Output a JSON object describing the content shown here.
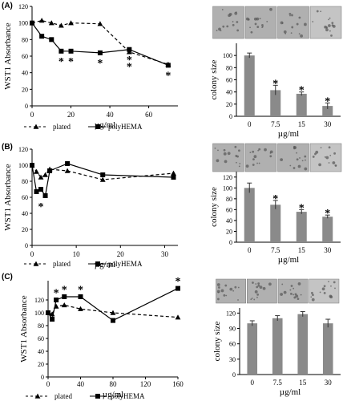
{
  "panels": [
    {
      "label": "(A)",
      "line": {
        "type": "line",
        "ylabel": "WST1 Absorbance",
        "xlabel": "µg/ml",
        "xlim": [
          0,
          75
        ],
        "ylim": [
          0,
          120
        ],
        "xticks": [
          "0",
          "20",
          "40",
          "60"
        ],
        "xtick_values": [
          0,
          20,
          40,
          60
        ],
        "yticks": [
          "0",
          "20",
          "40",
          "60",
          "80",
          "100",
          "120"
        ],
        "ytick_values": [
          0,
          20,
          40,
          60,
          80,
          100,
          120
        ],
        "series": [
          {
            "name": "plated",
            "marker": "triangle",
            "dash": true,
            "x": [
              0,
              5,
              10,
              15,
              20,
              35,
              50,
              70
            ],
            "y": [
              100,
              103,
              100,
              97,
              100,
              99,
              65,
              50
            ]
          },
          {
            "name": "polyHEMA",
            "marker": "square",
            "dash": false,
            "x": [
              0,
              5,
              10,
              15,
              20,
              35,
              50,
              70
            ],
            "y": [
              100,
              84,
              80,
              66,
              66,
              64,
              68,
              49
            ]
          }
        ],
        "stars": [
          {
            "x": 15,
            "y": 55
          },
          {
            "x": 20,
            "y": 55
          },
          {
            "x": 35,
            "y": 53
          },
          {
            "x": 50,
            "y": 57
          },
          {
            "x": 50,
            "y": 49
          },
          {
            "x": 70,
            "y": 38
          }
        ]
      },
      "bar": {
        "type": "bar",
        "ylabel": "colony size",
        "xlabel": "µg/ml",
        "categories": [
          "0",
          "7.5",
          "15",
          "30"
        ],
        "values": [
          100,
          43,
          37,
          17
        ],
        "errors": [
          4,
          8,
          3,
          5
        ],
        "ylim": [
          0,
          120
        ],
        "yticks": [
          "0",
          "20",
          "40",
          "60",
          "80",
          "100"
        ],
        "ytick_values": [
          0,
          20,
          40,
          60,
          80,
          100
        ],
        "stars": [
          false,
          true,
          true,
          true
        ]
      }
    },
    {
      "label": "(B)",
      "line": {
        "type": "line",
        "ylabel": "WST1 Absorbance",
        "xlabel": "µg/ml",
        "xlim": [
          0,
          33
        ],
        "ylim": [
          0,
          120
        ],
        "xticks": [
          "0",
          "10",
          "20",
          "30"
        ],
        "xtick_values": [
          0,
          10,
          20,
          30
        ],
        "yticks": [
          "0",
          "20",
          "40",
          "60",
          "80",
          "100",
          "120"
        ],
        "ytick_values": [
          0,
          20,
          40,
          60,
          80,
          100,
          120
        ],
        "series": [
          {
            "name": "plated",
            "marker": "triangle",
            "dash": true,
            "x": [
              0,
              1,
              2,
              3,
              4,
              8,
              16,
              32
            ],
            "y": [
              100,
              92,
              85,
              88,
              95,
              93,
              82,
              90
            ]
          },
          {
            "name": "polyHEMA",
            "marker": "square",
            "dash": false,
            "x": [
              0,
              1,
              2,
              3,
              4,
              8,
              16,
              32
            ],
            "y": [
              100,
              67,
              70,
              62,
              93,
              102,
              88,
              85
            ]
          }
        ],
        "stars": [
          {
            "x": 2,
            "y": 50
          }
        ]
      },
      "bar": {
        "type": "bar",
        "ylabel": "colony size",
        "xlabel": "µg/ml",
        "categories": [
          "0",
          "7.5",
          "15",
          "30"
        ],
        "values": [
          100,
          69,
          56,
          47
        ],
        "errors": [
          9,
          8,
          4,
          3
        ],
        "ylim": [
          0,
          130
        ],
        "yticks": [
          "0",
          "20",
          "40",
          "60",
          "80",
          "100",
          "120"
        ],
        "ytick_values": [
          0,
          20,
          40,
          60,
          80,
          100,
          120
        ],
        "stars": [
          false,
          true,
          true,
          true
        ]
      }
    },
    {
      "label": "(C)",
      "line": {
        "type": "line",
        "ylabel": "WST1 Absorbance",
        "xlabel": "µg/ml",
        "xlim": [
          0,
          160
        ],
        "ylim": [
          0,
          150
        ],
        "xticks": [
          "0",
          "40",
          "80",
          "120",
          "160"
        ],
        "xtick_values": [
          0,
          40,
          80,
          120,
          160
        ],
        "yticks": [
          "0",
          "20",
          "40",
          "60",
          "80",
          "100",
          "120"
        ],
        "ytick_values": [
          0,
          20,
          40,
          60,
          80,
          100,
          120
        ],
        "series": [
          {
            "name": "plated",
            "marker": "triangle",
            "dash": true,
            "x": [
              0,
              5,
              10,
              20,
              40,
              80,
              160
            ],
            "y": [
              100,
              98,
              110,
              112,
              106,
              100,
              93
            ]
          },
          {
            "name": "polyHEMA",
            "marker": "square",
            "dash": false,
            "x": [
              0,
              5,
              10,
              20,
              40,
              80,
              160
            ],
            "y": [
              100,
              90,
              120,
              125,
              125,
              88,
              138
            ]
          }
        ],
        "stars": [
          {
            "x": 10,
            "y": 133
          },
          {
            "x": 20,
            "y": 138
          },
          {
            "x": 40,
            "y": 138
          },
          {
            "x": 160,
            "y": 151
          }
        ]
      },
      "bar": {
        "type": "bar",
        "ylabel": "colony size",
        "xlabel": "µg/ml",
        "categories": [
          "0",
          "7.5",
          "15",
          "30"
        ],
        "values": [
          100,
          110,
          118,
          100
        ],
        "errors": [
          5,
          5,
          5,
          8
        ],
        "ylim": [
          0,
          130
        ],
        "yticks": [
          "0",
          "30",
          "60",
          "90",
          "120"
        ],
        "ytick_values": [
          0,
          30,
          60,
          90,
          120
        ],
        "stars": [
          false,
          false,
          false,
          false
        ]
      }
    }
  ],
  "legend": {
    "plated": "plated",
    "polyhema": "polyHEMA"
  },
  "star_symbol": "*"
}
